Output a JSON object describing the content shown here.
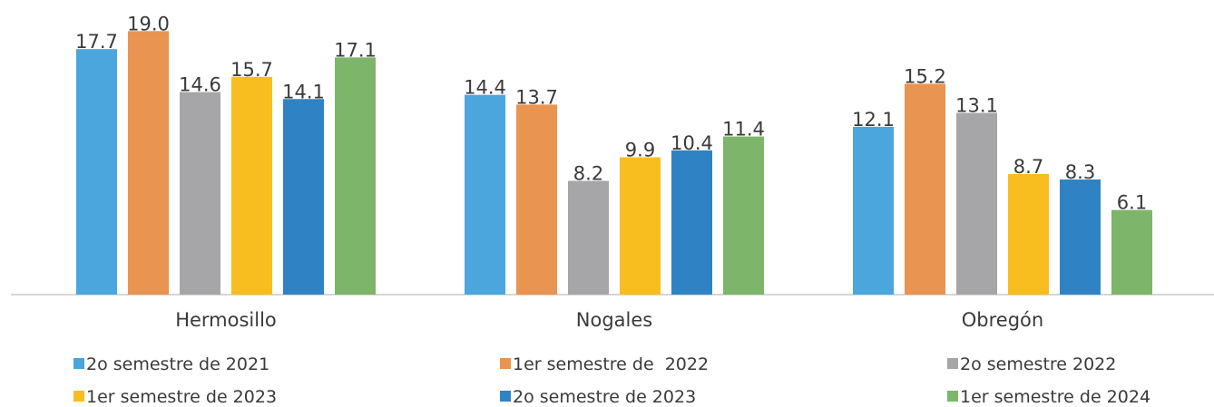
{
  "chart_data": {
    "type": "bar",
    "categories": [
      "Hermosillo",
      "Nogales",
      "Obregón"
    ],
    "series": [
      {
        "name": "2o semestre de 2021",
        "color": "#4aa6dd",
        "values": [
          17.7,
          14.4,
          12.1
        ],
        "value_labels": [
          "17.7",
          "14.4",
          "12.1"
        ]
      },
      {
        "name": "1er semestre de  2022",
        "color": "#e99450",
        "values": [
          19.0,
          13.7,
          15.2
        ],
        "value_labels": [
          "19.0",
          "13.7",
          "15.2"
        ]
      },
      {
        "name": "2o semestre 2022",
        "color": "#a6a6a8",
        "values": [
          14.6,
          8.2,
          13.1
        ],
        "value_labels": [
          "14.6",
          "8.2",
          "13.1"
        ]
      },
      {
        "name": "1er semestre de 2023",
        "color": "#f8be20",
        "values": [
          15.7,
          9.9,
          8.7
        ],
        "value_labels": [
          "15.7",
          "9.9",
          "8.7"
        ]
      },
      {
        "name": "2o semestre de 2023",
        "color": "#2f83c5",
        "values": [
          14.1,
          10.4,
          8.3
        ],
        "value_labels": [
          "14.1",
          "10.4",
          "8.3"
        ]
      },
      {
        "name": "1er semestre de 2024",
        "color": "#7db56a",
        "values": [
          17.1,
          11.4,
          6.1
        ],
        "value_labels": [
          "17.1",
          "11.4",
          "6.1"
        ]
      }
    ]
  }
}
